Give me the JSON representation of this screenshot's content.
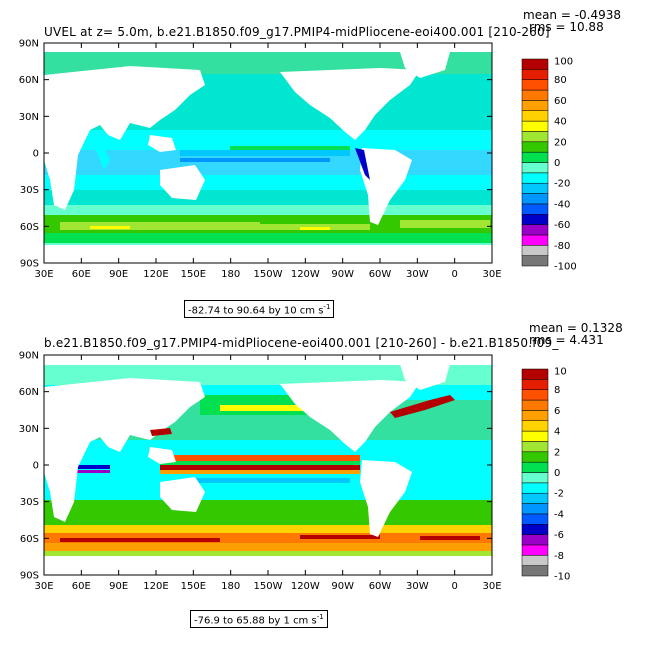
{
  "colors": {
    "palette": [
      "#767676",
      "#c8c8c8",
      "#ff00ff",
      "#9a00c8",
      "#0000c8",
      "#005aff",
      "#0096ff",
      "#00c8ff",
      "#00ffff",
      "#66ffd0",
      "#00e050",
      "#33c800",
      "#a0e632",
      "#ffff00",
      "#ffd200",
      "#ffa000",
      "#ff7800",
      "#ff5000",
      "#e61e00",
      "#b40000"
    ]
  },
  "panels": [
    {
      "title": "UVEL at z=   5.0m, b.e21.B1850.f09_g17.PMIP4-midPliocene-eoi400.001 [210-260]",
      "stat1": "mean = -0.4938",
      "stat2": "rms = 10.88",
      "range_label": "-82.74 to 90.64 by 10 cm s",
      "range_exp": "-1",
      "colorbar_labels": [
        "100",
        "80",
        "60",
        "40",
        "20",
        "0",
        "-20",
        "-40",
        "-60",
        "-80",
        "-100"
      ],
      "lat_labels": [
        "90N",
        "60N",
        "30N",
        "0",
        "30S",
        "60S",
        "90S"
      ],
      "lon_labels": [
        "30E",
        "60E",
        "90E",
        "120E",
        "150E",
        "180",
        "150W",
        "120W",
        "90W",
        "60W",
        "30W",
        "0",
        "30E"
      ]
    },
    {
      "title": "b.e21.B1850.f09_g17.PMIP4-midPliocene-eoi400.001 [210-260] - b.e21.B1850.f09_",
      "stat1": "mean = 0.1328",
      "stat2": "rms = 4.431",
      "range_label": "-76.9 to 65.88 by 1 cm s",
      "range_exp": "-1",
      "colorbar_labels": [
        "10",
        "8",
        "6",
        "4",
        "2",
        "0",
        "-2",
        "-4",
        "-6",
        "-8",
        "-10"
      ],
      "lat_labels": [
        "90N",
        "60N",
        "30N",
        "0",
        "30S",
        "60S",
        "90S"
      ],
      "lon_labels": [
        "30E",
        "60E",
        "90E",
        "120E",
        "150E",
        "180",
        "150W",
        "120W",
        "90W",
        "60W",
        "30W",
        "0",
        "30E"
      ]
    }
  ]
}
